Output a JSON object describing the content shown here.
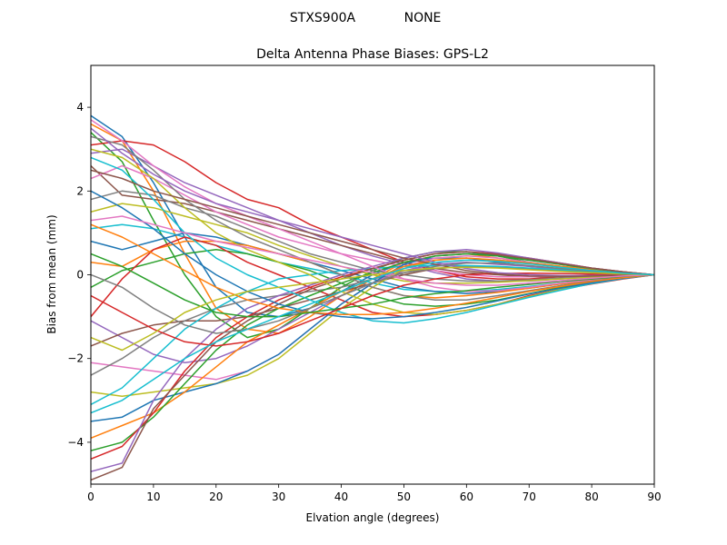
{
  "figure": {
    "suptitle_left": "STXS900A",
    "suptitle_right": "NONE"
  },
  "chart_data": {
    "type": "line",
    "title": "Delta Antenna Phase Biases: GPS-L2",
    "xlabel": "Elvation angle (degrees)",
    "ylabel": "Bias from mean (mm)",
    "xlim": [
      0,
      90
    ],
    "ylim": [
      -5,
      5
    ],
    "xticks": [
      0,
      10,
      20,
      30,
      40,
      50,
      60,
      70,
      80,
      90
    ],
    "yticks": [
      -4,
      -2,
      0,
      2,
      4
    ],
    "grid": false,
    "legend": "none",
    "x": [
      0,
      5,
      10,
      15,
      20,
      25,
      30,
      35,
      40,
      45,
      50,
      55,
      60,
      65,
      70,
      75,
      80,
      85,
      90
    ],
    "palette": [
      "#1f77b4",
      "#ff7f0e",
      "#2ca02c",
      "#d62728",
      "#9467bd",
      "#8c564b",
      "#e377c2",
      "#7f7f7f",
      "#bcbd22",
      "#17becf"
    ],
    "series": [
      {
        "values": [
          3.8,
          3.3,
          2.2,
          0.9,
          -0.3,
          -0.9,
          -1.0,
          -0.8,
          -0.4,
          0.0,
          0.3,
          0.4,
          0.4,
          0.3,
          0.2,
          0.15,
          0.1,
          0.05,
          0.0
        ]
      },
      {
        "values": [
          3.6,
          3.2,
          2.0,
          0.5,
          -0.8,
          -1.3,
          -1.4,
          -1.0,
          -0.5,
          -0.1,
          0.3,
          0.45,
          0.5,
          0.4,
          0.3,
          0.2,
          0.15,
          0.07,
          0.0
        ]
      },
      {
        "values": [
          3.4,
          2.7,
          1.3,
          0.0,
          -1.0,
          -1.5,
          -1.3,
          -0.8,
          -0.3,
          0.1,
          0.4,
          0.55,
          0.55,
          0.45,
          0.3,
          0.2,
          0.1,
          0.05,
          0.0
        ]
      },
      {
        "values": [
          3.1,
          3.2,
          3.1,
          2.7,
          2.2,
          1.8,
          1.6,
          1.2,
          0.9,
          0.6,
          0.3,
          0.1,
          -0.05,
          -0.1,
          -0.1,
          -0.05,
          0.0,
          0.0,
          0.0
        ]
      },
      {
        "values": [
          2.9,
          3.0,
          2.6,
          2.2,
          1.9,
          1.6,
          1.3,
          1.0,
          0.7,
          0.45,
          0.25,
          0.05,
          -0.1,
          -0.15,
          -0.15,
          -0.1,
          -0.05,
          -0.02,
          0.0
        ]
      },
      {
        "values": [
          2.6,
          1.9,
          1.8,
          1.7,
          1.5,
          1.3,
          1.1,
          0.9,
          0.7,
          0.5,
          0.3,
          0.15,
          0.05,
          0.0,
          -0.05,
          -0.05,
          -0.03,
          -0.01,
          0.0
        ]
      },
      {
        "values": [
          2.3,
          2.6,
          2.3,
          1.9,
          1.5,
          1.2,
          0.9,
          0.7,
          0.5,
          0.35,
          0.2,
          0.1,
          0.0,
          -0.05,
          -0.05,
          -0.03,
          -0.02,
          0.0,
          0.0
        ]
      },
      {
        "values": [
          1.8,
          2.0,
          1.9,
          1.6,
          1.4,
          1.1,
          0.8,
          0.5,
          0.3,
          0.1,
          0.0,
          -0.1,
          -0.15,
          -0.15,
          -0.12,
          -0.08,
          -0.05,
          -0.02,
          0.0
        ]
      },
      {
        "values": [
          1.5,
          1.7,
          1.6,
          1.4,
          1.2,
          1.0,
          0.7,
          0.45,
          0.2,
          0.0,
          -0.15,
          -0.2,
          -0.2,
          -0.18,
          -0.14,
          -0.1,
          -0.06,
          -0.03,
          0.0
        ]
      },
      {
        "values": [
          1.1,
          1.2,
          1.1,
          0.9,
          0.7,
          0.5,
          0.3,
          0.15,
          0.0,
          -0.2,
          -0.35,
          -0.4,
          -0.4,
          -0.35,
          -0.28,
          -0.2,
          -0.12,
          -0.05,
          0.0
        ]
      },
      {
        "values": [
          0.8,
          0.6,
          0.8,
          1.0,
          0.9,
          0.7,
          0.5,
          0.3,
          0.1,
          -0.1,
          -0.3,
          -0.4,
          -0.45,
          -0.4,
          -0.32,
          -0.22,
          -0.14,
          -0.06,
          0.0
        ]
      },
      {
        "values": [
          0.3,
          0.2,
          0.6,
          0.8,
          0.8,
          0.7,
          0.5,
          0.3,
          0.0,
          -0.3,
          -0.5,
          -0.55,
          -0.5,
          -0.42,
          -0.32,
          -0.22,
          -0.14,
          -0.06,
          0.0
        ]
      },
      {
        "values": [
          -0.3,
          0.1,
          0.3,
          0.5,
          0.6,
          0.5,
          0.3,
          0.1,
          -0.2,
          -0.5,
          -0.7,
          -0.75,
          -0.7,
          -0.6,
          -0.45,
          -0.3,
          -0.18,
          -0.08,
          0.0
        ]
      },
      {
        "values": [
          -1.0,
          -0.1,
          0.6,
          0.9,
          0.7,
          0.3,
          0.0,
          -0.3,
          -0.6,
          -0.9,
          -1.0,
          -0.95,
          -0.85,
          -0.7,
          -0.5,
          -0.35,
          -0.22,
          -0.1,
          0.0
        ]
      },
      {
        "values": [
          -1.1,
          -1.5,
          -1.9,
          -2.1,
          -2.0,
          -1.7,
          -1.3,
          -0.9,
          -0.5,
          -0.2,
          0.1,
          0.25,
          0.3,
          0.25,
          0.2,
          0.12,
          0.08,
          0.03,
          0.0
        ]
      },
      {
        "values": [
          -1.7,
          -1.4,
          -1.2,
          -1.1,
          -1.1,
          -1.0,
          -0.8,
          -0.6,
          -0.4,
          -0.2,
          0.0,
          0.15,
          0.2,
          0.18,
          0.14,
          0.1,
          0.06,
          0.03,
          0.0
        ]
      },
      {
        "values": [
          -2.1,
          -2.2,
          -2.3,
          -2.4,
          -2.5,
          -2.3,
          -1.9,
          -1.3,
          -0.7,
          -0.2,
          0.2,
          0.4,
          0.45,
          0.4,
          0.3,
          0.2,
          0.12,
          0.05,
          0.0
        ]
      },
      {
        "values": [
          -2.4,
          -2.0,
          -1.5,
          -1.1,
          -0.8,
          -0.6,
          -0.5,
          -0.4,
          -0.3,
          -0.1,
          0.05,
          0.15,
          0.2,
          0.18,
          0.14,
          0.1,
          0.06,
          0.02,
          0.0
        ]
      },
      {
        "values": [
          -2.8,
          -2.9,
          -2.8,
          -2.7,
          -2.6,
          -2.4,
          -2.0,
          -1.4,
          -0.8,
          -0.3,
          0.15,
          0.35,
          0.4,
          0.35,
          0.28,
          0.2,
          0.12,
          0.05,
          0.0
        ]
      },
      {
        "values": [
          -3.1,
          -2.7,
          -2.0,
          -1.3,
          -0.8,
          -0.4,
          -0.1,
          0.0,
          0.1,
          0.15,
          0.2,
          0.22,
          0.22,
          0.2,
          0.16,
          0.12,
          0.08,
          0.04,
          0.0
        ]
      },
      {
        "values": [
          -3.5,
          -3.4,
          -3.0,
          -2.8,
          -2.6,
          -2.3,
          -1.9,
          -1.3,
          -0.7,
          -0.2,
          0.25,
          0.45,
          0.5,
          0.45,
          0.35,
          0.25,
          0.15,
          0.06,
          0.0
        ]
      },
      {
        "values": [
          -3.9,
          -3.6,
          -3.3,
          -2.8,
          -2.2,
          -1.6,
          -1.2,
          -0.8,
          -0.4,
          -0.1,
          0.2,
          0.35,
          0.4,
          0.35,
          0.28,
          0.2,
          0.12,
          0.05,
          0.0
        ]
      },
      {
        "values": [
          -4.2,
          -4.0,
          -3.4,
          -2.6,
          -1.8,
          -1.2,
          -0.8,
          -0.5,
          -0.2,
          0.05,
          0.3,
          0.45,
          0.5,
          0.45,
          0.35,
          0.25,
          0.15,
          0.06,
          0.0
        ]
      },
      {
        "values": [
          -4.4,
          -4.1,
          -3.3,
          -2.3,
          -1.5,
          -1.0,
          -0.6,
          -0.3,
          -0.05,
          0.15,
          0.35,
          0.5,
          0.55,
          0.5,
          0.4,
          0.28,
          0.16,
          0.07,
          0.0
        ]
      },
      {
        "values": [
          -4.7,
          -4.5,
          -3.0,
          -2.0,
          -1.3,
          -0.8,
          -0.5,
          -0.25,
          0.0,
          0.2,
          0.4,
          0.55,
          0.6,
          0.52,
          0.4,
          0.28,
          0.16,
          0.07,
          0.0
        ]
      },
      {
        "values": [
          -4.9,
          -4.6,
          -3.2,
          -2.4,
          -1.6,
          -1.1,
          -0.7,
          -0.35,
          -0.1,
          0.15,
          0.35,
          0.5,
          0.55,
          0.48,
          0.38,
          0.27,
          0.16,
          0.07,
          0.0
        ]
      },
      {
        "values": [
          3.7,
          3.2,
          2.6,
          2.1,
          1.7,
          1.4,
          1.1,
          0.8,
          0.5,
          0.2,
          -0.1,
          -0.3,
          -0.4,
          -0.38,
          -0.3,
          -0.2,
          -0.12,
          -0.05,
          0.0
        ]
      },
      {
        "values": [
          3.3,
          3.1,
          2.5,
          1.8,
          1.3,
          0.9,
          0.6,
          0.3,
          0.0,
          -0.3,
          -0.5,
          -0.6,
          -0.6,
          -0.5,
          -0.38,
          -0.26,
          -0.15,
          -0.06,
          0.0
        ]
      },
      {
        "values": [
          3.0,
          2.8,
          2.3,
          1.6,
          1.0,
          0.6,
          0.3,
          0.0,
          -0.4,
          -0.7,
          -0.9,
          -0.95,
          -0.85,
          -0.7,
          -0.52,
          -0.35,
          -0.2,
          -0.08,
          0.0
        ]
      },
      {
        "values": [
          2.8,
          2.5,
          1.8,
          1.0,
          0.4,
          0.0,
          -0.3,
          -0.6,
          -0.9,
          -1.1,
          -1.15,
          -1.05,
          -0.9,
          -0.72,
          -0.54,
          -0.37,
          -0.21,
          -0.09,
          0.0
        ]
      },
      {
        "values": [
          2.0,
          1.6,
          1.1,
          0.5,
          0.0,
          -0.4,
          -0.7,
          -0.9,
          -1.0,
          -1.05,
          -1.0,
          -0.9,
          -0.78,
          -0.62,
          -0.46,
          -0.32,
          -0.19,
          -0.08,
          0.0
        ]
      },
      {
        "values": [
          1.2,
          0.9,
          0.5,
          0.1,
          -0.3,
          -0.6,
          -0.8,
          -0.9,
          -0.95,
          -0.95,
          -0.9,
          -0.8,
          -0.68,
          -0.54,
          -0.4,
          -0.28,
          -0.16,
          -0.07,
          0.0
        ]
      },
      {
        "values": [
          0.5,
          0.2,
          -0.2,
          -0.6,
          -0.9,
          -1.0,
          -1.0,
          -0.9,
          -0.8,
          -0.7,
          -0.55,
          -0.45,
          -0.38,
          -0.3,
          -0.23,
          -0.16,
          -0.1,
          -0.04,
          0.0
        ]
      },
      {
        "values": [
          -0.5,
          -0.9,
          -1.3,
          -1.6,
          -1.7,
          -1.6,
          -1.4,
          -1.1,
          -0.8,
          -0.5,
          -0.25,
          -0.1,
          0.0,
          0.03,
          0.04,
          0.03,
          0.02,
          0.01,
          0.0
        ]
      },
      {
        "values": [
          3.5,
          2.9,
          2.4,
          2.0,
          1.7,
          1.5,
          1.3,
          1.1,
          0.9,
          0.7,
          0.5,
          0.3,
          0.15,
          0.05,
          0.0,
          -0.02,
          -0.02,
          -0.01,
          0.0
        ]
      },
      {
        "values": [
          2.5,
          2.3,
          2.0,
          1.8,
          1.6,
          1.4,
          1.2,
          1.0,
          0.8,
          0.6,
          0.4,
          0.25,
          0.1,
          0.02,
          -0.03,
          -0.04,
          -0.03,
          -0.01,
          0.0
        ]
      },
      {
        "values": [
          1.3,
          1.4,
          1.2,
          1.0,
          0.8,
          0.65,
          0.5,
          0.35,
          0.2,
          0.05,
          -0.1,
          -0.2,
          -0.25,
          -0.25,
          -0.2,
          -0.14,
          -0.08,
          -0.03,
          0.0
        ]
      },
      {
        "values": [
          0.0,
          -0.3,
          -0.8,
          -1.2,
          -1.4,
          -1.3,
          -1.1,
          -0.8,
          -0.5,
          -0.2,
          0.05,
          0.2,
          0.28,
          0.28,
          0.22,
          0.15,
          0.09,
          0.04,
          0.0
        ]
      },
      {
        "values": [
          -1.5,
          -1.8,
          -1.4,
          -0.9,
          -0.6,
          -0.4,
          -0.3,
          -0.2,
          -0.1,
          0.0,
          0.1,
          0.16,
          0.18,
          0.16,
          0.12,
          0.08,
          0.05,
          0.02,
          0.0
        ]
      },
      {
        "values": [
          -3.3,
          -3.0,
          -2.5,
          -2.0,
          -1.6,
          -1.3,
          -1.0,
          -0.7,
          -0.4,
          -0.1,
          0.15,
          0.3,
          0.35,
          0.32,
          0.26,
          0.18,
          0.1,
          0.04,
          0.0
        ]
      }
    ]
  }
}
